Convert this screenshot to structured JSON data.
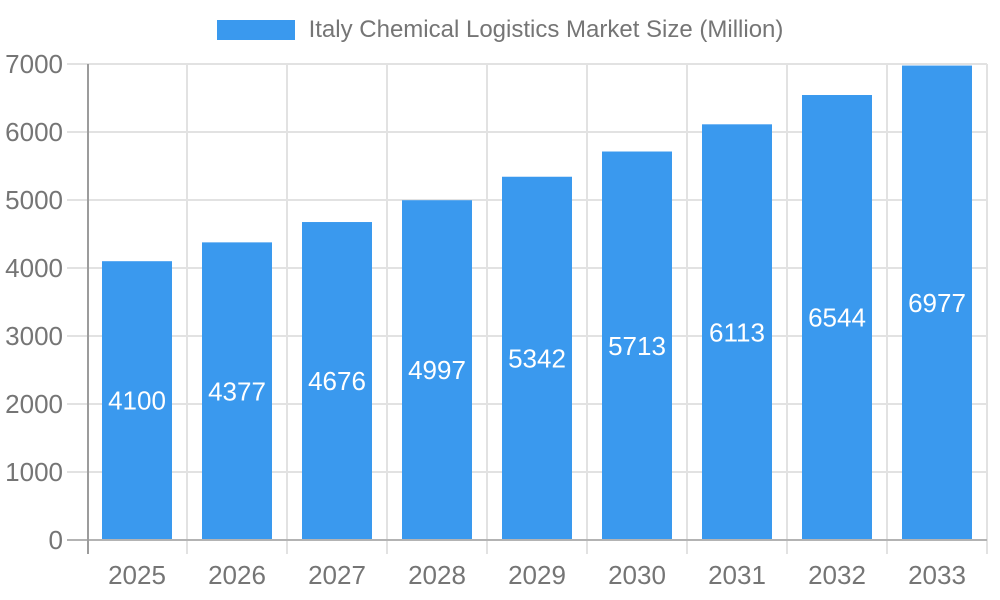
{
  "chart_data": {
    "type": "bar",
    "title": "Italy Chemical Logistics Market Size (Million)",
    "series_name": "Italy Chemical Logistics Market Size (Million)",
    "categories": [
      "2025",
      "2026",
      "2027",
      "2028",
      "2029",
      "2030",
      "2031",
      "2032",
      "2033"
    ],
    "values": [
      4100,
      4377,
      4676,
      4997,
      5342,
      5713,
      6113,
      6544,
      6977
    ],
    "xlabel": "",
    "ylabel": "",
    "ylim": [
      0,
      7000
    ],
    "y_ticks": [
      0,
      1000,
      2000,
      3000,
      4000,
      5000,
      6000,
      7000
    ],
    "grid": true,
    "legend_position": "top-center",
    "bar_color": "#3a99ee",
    "value_label_color": "#ffffff",
    "axis_text_color": "#757575",
    "grid_color": "#e2e2e2",
    "baseline_color": "#b3b3b3",
    "axis_line_color": "#9c9c9c",
    "background": "#ffffff"
  }
}
